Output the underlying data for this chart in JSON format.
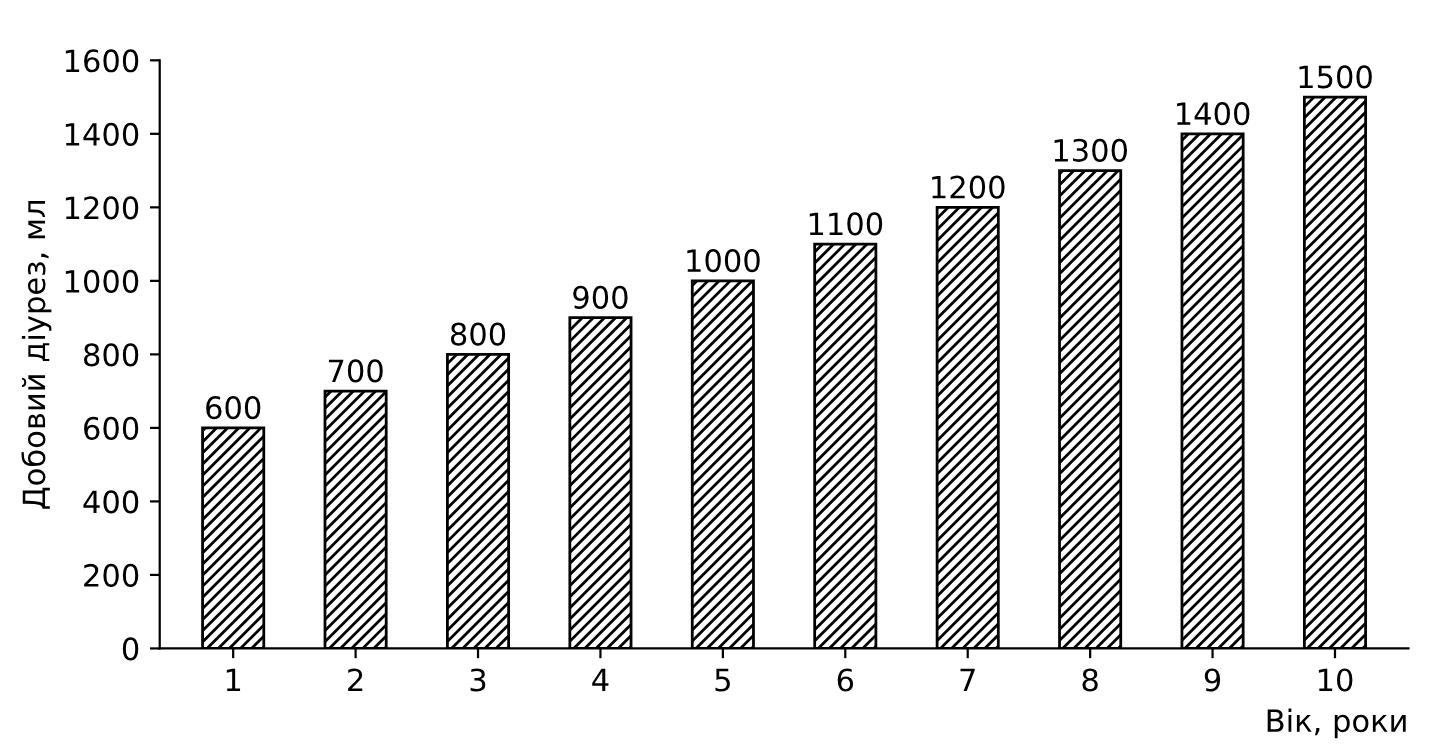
{
  "chart_data": {
    "type": "bar",
    "xlabel": "Вік, роки",
    "ylabel": "Добовий діурез, мл",
    "categories": [
      "1",
      "2",
      "3",
      "4",
      "5",
      "6",
      "7",
      "8",
      "9",
      "10"
    ],
    "values": [
      600,
      700,
      800,
      900,
      1000,
      1100,
      1200,
      1300,
      1400,
      1500
    ],
    "color": "#000000",
    "data_labels": true,
    "grid": false,
    "ylim": [
      0,
      1600
    ],
    "yticks": [
      0,
      200,
      400,
      600,
      800,
      1000,
      1200,
      1400,
      1600
    ]
  }
}
